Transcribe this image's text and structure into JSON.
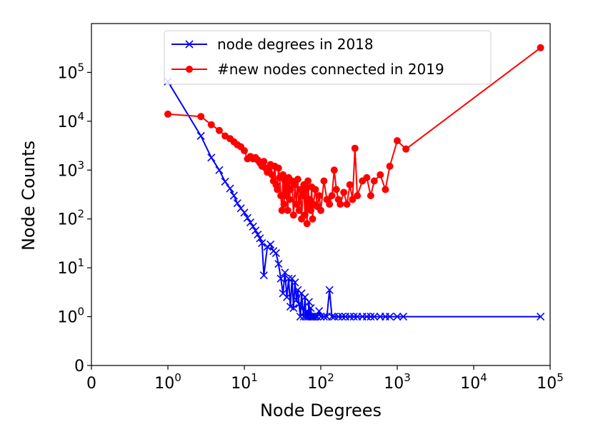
{
  "chart_data": {
    "type": "line",
    "xlabel": "Node Degrees",
    "ylabel": "Node Counts",
    "x_scale": "symlog",
    "y_scale": "symlog",
    "xlim": [
      0,
      100000
    ],
    "ylim": [
      0,
      1000000
    ],
    "x_ticks": [
      {
        "value": 0,
        "base": "0",
        "exp": ""
      },
      {
        "value": 1,
        "base": "10",
        "exp": "0"
      },
      {
        "value": 10,
        "base": "10",
        "exp": "1"
      },
      {
        "value": 100,
        "base": "10",
        "exp": "2"
      },
      {
        "value": 1000,
        "base": "10",
        "exp": "3"
      },
      {
        "value": 10000,
        "base": "10",
        "exp": "4"
      },
      {
        "value": 100000,
        "base": "10",
        "exp": "5"
      }
    ],
    "y_ticks": [
      {
        "value": 0,
        "base": "0",
        "exp": ""
      },
      {
        "value": 1,
        "base": "10",
        "exp": "0"
      },
      {
        "value": 10,
        "base": "10",
        "exp": "1"
      },
      {
        "value": 100,
        "base": "10",
        "exp": "2"
      },
      {
        "value": 1000,
        "base": "10",
        "exp": "3"
      },
      {
        "value": 10000,
        "base": "10",
        "exp": "4"
      },
      {
        "value": 100000,
        "base": "10",
        "exp": "5"
      }
    ],
    "legend_position": "top-center",
    "series": [
      {
        "name": "node degrees in 2018",
        "color": "#0000ff",
        "marker": "x",
        "x": [
          1,
          2.7,
          3.7,
          4.7,
          5.6,
          6.5,
          7.3,
          8.1,
          9,
          10,
          11,
          12,
          13,
          14,
          15,
          16,
          17,
          18,
          20,
          22,
          24,
          26,
          28,
          30,
          32,
          34,
          36,
          38,
          40,
          42,
          44,
          46,
          48,
          50,
          52,
          54,
          56,
          58,
          60,
          62,
          64,
          66,
          68,
          70,
          72,
          74,
          76,
          78,
          80,
          85,
          90,
          95,
          100,
          110,
          120,
          130,
          140,
          150,
          170,
          190,
          210,
          240,
          270,
          300,
          350,
          400,
          450,
          500,
          600,
          700,
          800,
          1000,
          1200,
          75000
        ],
        "y": [
          65000,
          5000,
          1800,
          1000,
          580,
          420,
          300,
          210,
          165,
          135,
          105,
          85,
          70,
          58,
          48,
          40,
          32,
          7,
          27,
          30,
          22,
          20,
          12,
          6,
          3,
          8,
          2.5,
          6,
          1.6,
          6,
          1.5,
          5,
          2.2,
          3.5,
          1.8,
          1,
          3,
          1.5,
          1,
          2.5,
          1,
          1.3,
          1,
          2,
          1,
          1.5,
          1,
          1,
          1,
          1,
          1,
          1.3,
          1,
          1,
          1,
          3.5,
          1,
          1,
          1,
          1,
          1,
          1,
          1,
          1,
          1,
          1,
          1,
          1,
          1,
          1,
          1,
          1,
          1,
          1
        ]
      },
      {
        "name": "#new nodes connected in 2019",
        "color": "#ff0000",
        "marker": "o",
        "x": [
          1,
          2.7,
          3.7,
          4.7,
          5.6,
          6.5,
          7.3,
          8.1,
          9,
          10,
          11,
          12,
          13,
          14,
          15,
          16,
          17,
          18,
          19,
          20,
          21,
          22,
          23,
          24,
          25,
          26,
          27,
          28,
          29,
          30,
          31,
          32,
          33,
          34,
          35,
          36,
          37,
          38,
          39,
          40,
          42,
          44,
          46,
          48,
          50,
          52,
          54,
          56,
          58,
          60,
          62,
          64,
          66,
          68,
          70,
          72,
          74,
          76,
          78,
          80,
          85,
          90,
          95,
          100,
          110,
          120,
          130,
          140,
          150,
          160,
          170,
          180,
          200,
          220,
          240,
          260,
          280,
          300,
          350,
          400,
          450,
          500,
          600,
          700,
          800,
          1000,
          1300,
          75000
        ],
        "y": [
          14000,
          12500,
          8500,
          6500,
          5000,
          4400,
          3800,
          3300,
          3000,
          2500,
          1700,
          1900,
          1700,
          1800,
          1600,
          1400,
          1200,
          1500,
          1100,
          900,
          1000,
          1300,
          800,
          600,
          1200,
          500,
          400,
          1100,
          700,
          300,
          150,
          800,
          200,
          600,
          300,
          500,
          150,
          700,
          250,
          400,
          600,
          120,
          500,
          200,
          650,
          150,
          400,
          100,
          300,
          500,
          120,
          400,
          80,
          600,
          200,
          250,
          150,
          450,
          100,
          200,
          400,
          180,
          300,
          150,
          600,
          250,
          200,
          300,
          1000,
          400,
          250,
          200,
          350,
          200,
          500,
          250,
          2800,
          300,
          600,
          700,
          300,
          600,
          800,
          400,
          1200,
          4000,
          2700,
          320000
        ]
      }
    ]
  }
}
